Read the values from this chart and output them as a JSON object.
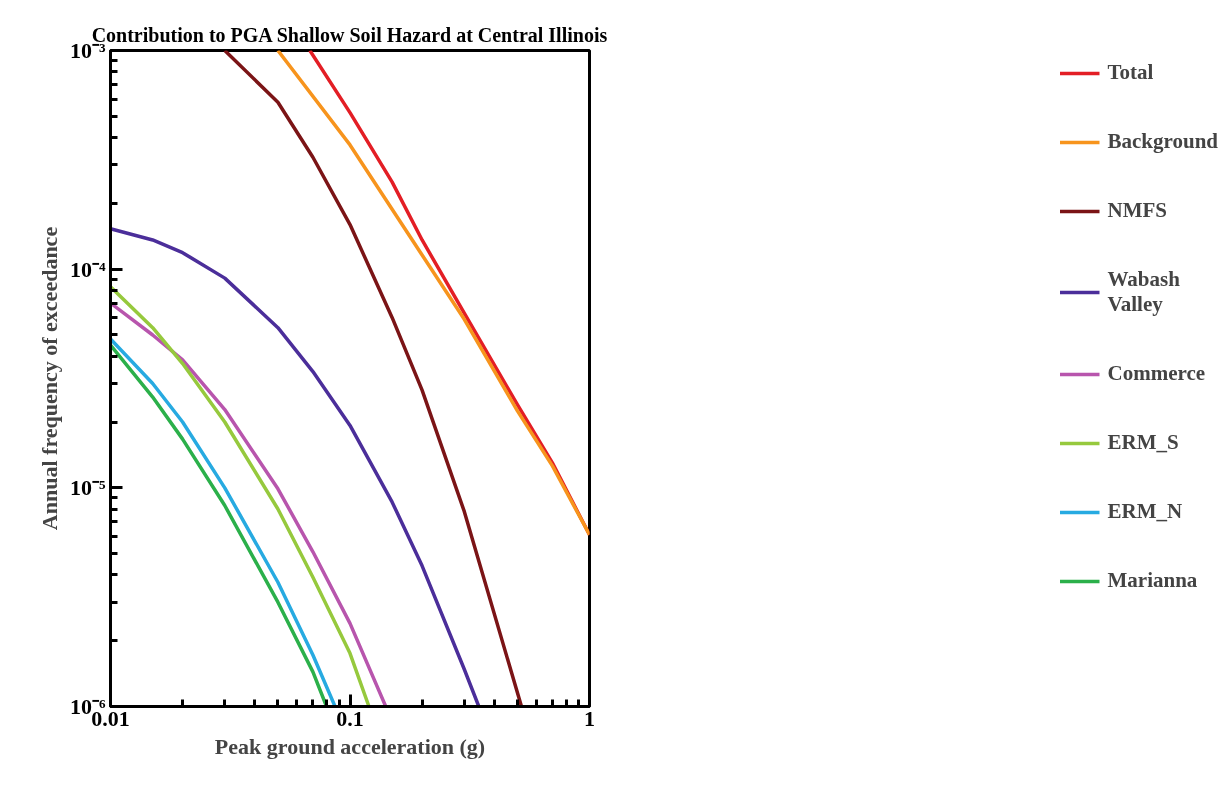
{
  "chart_data": {
    "type": "line",
    "title": "Contribution to PGA Shallow Soil Hazard at Central Illinois",
    "xlabel": "Peak ground acceleration (g)",
    "ylabel": "Annual frequency of exceedance",
    "log": "xy",
    "grid": false,
    "legend": "right",
    "line_style": "solid",
    "marker": "none",
    "xlim": [
      0.01,
      1
    ],
    "ylim": [
      1e-06,
      0.001
    ],
    "xticks": [
      0.01,
      0.1,
      1
    ],
    "yticks": [
      {
        "value": 1e-06,
        "label": "10⁻⁶"
      },
      {
        "value": 1e-05,
        "label": "10⁻⁵"
      },
      {
        "value": 0.0001,
        "label": "10⁻⁴"
      },
      {
        "value": 0.001,
        "label": "10⁻³"
      }
    ],
    "series": [
      {
        "name": "Total",
        "color": "#e31e25",
        "x": [
          0.068,
          0.1,
          0.15,
          0.2,
          0.3,
          0.5,
          0.7,
          1
        ],
        "values": [
          0.001,
          0.00052,
          0.00025,
          0.000136,
          6.3e-05,
          2.4e-05,
          1.3e-05,
          6.1e-06
        ]
      },
      {
        "name": "Background",
        "color": "#f7941d",
        "x": [
          0.05,
          0.1,
          0.2,
          0.3,
          0.5,
          0.7,
          1
        ],
        "values": [
          0.001,
          0.00037,
          0.000116,
          5.9e-05,
          2.25e-05,
          1.26e-05,
          6.1e-06
        ]
      },
      {
        "name": "NMFS",
        "color": "#7b1416",
        "x": [
          0.03,
          0.05,
          0.07,
          0.1,
          0.15,
          0.2,
          0.3,
          0.52
        ],
        "values": [
          0.001,
          0.00058,
          0.000325,
          0.00016,
          6e-05,
          2.8e-05,
          7.8e-06,
          1e-06
        ]
      },
      {
        "name": "Wabash\nValley",
        "color": "#4b2e9a",
        "x": [
          0.01,
          0.015,
          0.02,
          0.03,
          0.05,
          0.07,
          0.1,
          0.15,
          0.2,
          0.3,
          0.345
        ],
        "values": [
          0.000153,
          0.000136,
          0.000119,
          9.1e-05,
          5.4e-05,
          3.4e-05,
          1.93e-05,
          8.6e-06,
          4.4e-06,
          1.48e-06,
          1e-06
        ]
      },
      {
        "name": "Commerce",
        "color": "#b855ad",
        "x": [
          0.01,
          0.015,
          0.02,
          0.03,
          0.05,
          0.07,
          0.1,
          0.141
        ],
        "values": [
          7e-05,
          5e-05,
          3.85e-05,
          2.28e-05,
          9.9e-06,
          5.1e-06,
          2.4e-06,
          1e-06
        ]
      },
      {
        "name": "ERM_S",
        "color": "#96c93d",
        "x": [
          0.01,
          0.015,
          0.02,
          0.03,
          0.05,
          0.07,
          0.1,
          0.12
        ],
        "values": [
          8.3e-05,
          5.4e-05,
          3.7e-05,
          2e-05,
          8e-06,
          3.9e-06,
          1.75e-06,
          1e-06
        ]
      },
      {
        "name": "ERM_N",
        "color": "#27aae1",
        "x": [
          0.01,
          0.015,
          0.02,
          0.03,
          0.05,
          0.07,
          0.0866
        ],
        "values": [
          4.8e-05,
          3e-05,
          2e-05,
          1e-05,
          3.7e-06,
          1.72e-06,
          1e-06
        ]
      },
      {
        "name": "Marianna",
        "color": "#2bb04a",
        "x": [
          0.01,
          0.015,
          0.02,
          0.03,
          0.05,
          0.07,
          0.0798
        ],
        "values": [
          4.5e-05,
          2.6e-05,
          1.67e-05,
          8.3e-06,
          3e-06,
          1.44e-06,
          1e-06
        ]
      }
    ]
  }
}
